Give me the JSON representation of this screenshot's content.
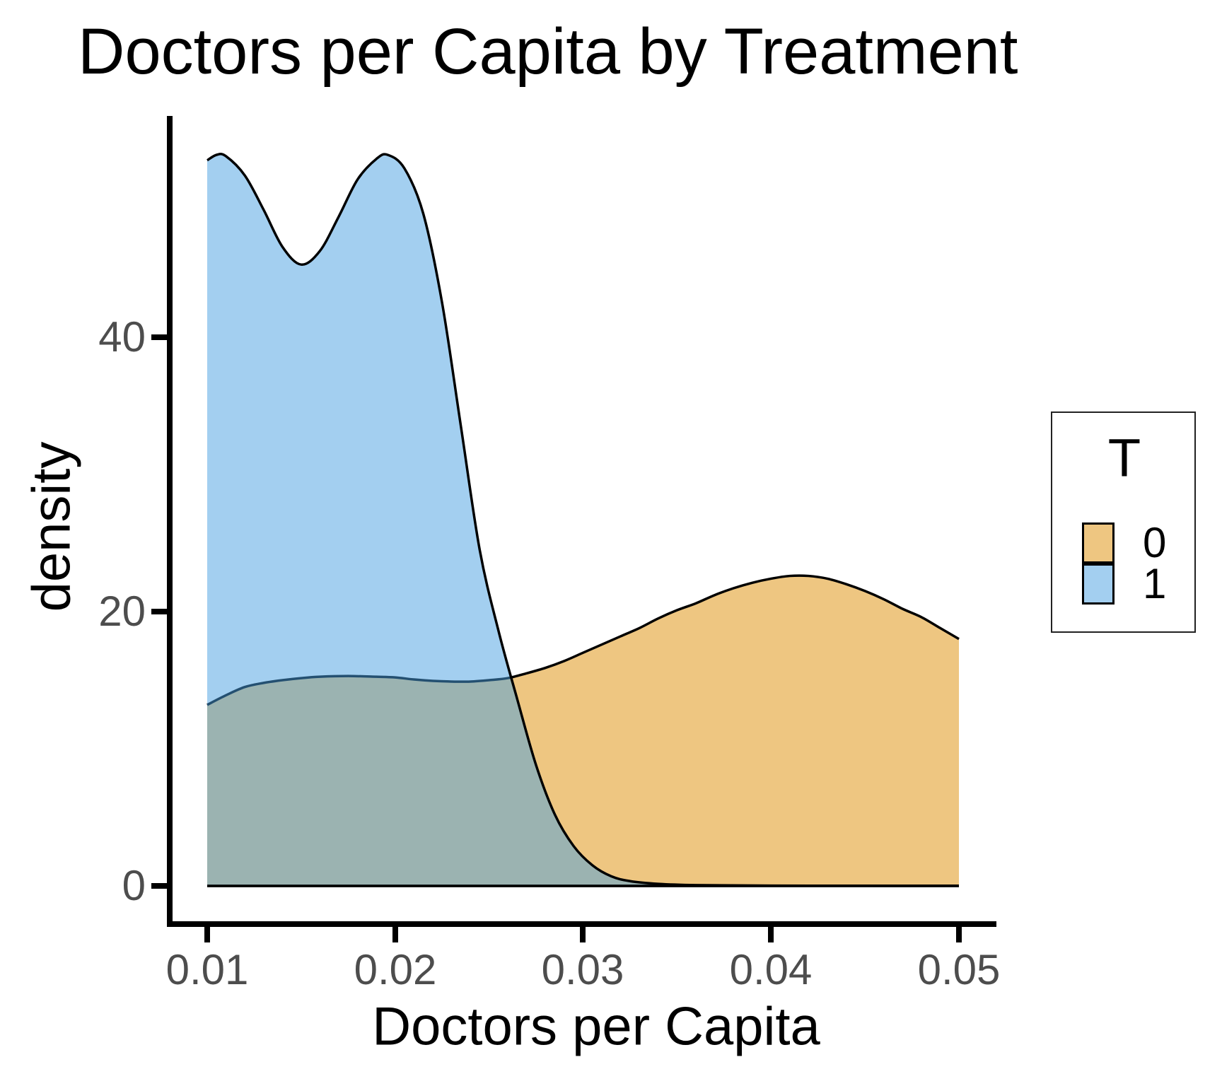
{
  "chart_data": {
    "type": "area",
    "variant": "overlapping-density",
    "title": "Doctors per Capita by Treatment",
    "xlabel": "Doctors per Capita",
    "ylabel": "density",
    "xlim": [
      0.01,
      0.05
    ],
    "ylim": [
      0,
      56
    ],
    "grid": false,
    "x_ticks": [
      "0.01",
      "0.02",
      "0.03",
      "0.04",
      "0.05"
    ],
    "y_ticks": [
      "0",
      "20",
      "40"
    ],
    "legend": {
      "title": "T",
      "position": "right",
      "entries": [
        {
          "label": "0",
          "swatch_color": "#EEC681"
        },
        {
          "label": "1",
          "swatch_color": "#A3CFF0"
        }
      ]
    },
    "series": [
      {
        "name": "0",
        "x": [
          0.01,
          0.011,
          0.012,
          0.013,
          0.014,
          0.015,
          0.016,
          0.0175,
          0.019,
          0.02,
          0.021,
          0.022,
          0.023,
          0.024,
          0.025,
          0.026,
          0.027,
          0.028,
          0.029,
          0.03,
          0.031,
          0.032,
          0.033,
          0.034,
          0.035,
          0.036,
          0.037,
          0.038,
          0.039,
          0.04,
          0.041,
          0.042,
          0.043,
          0.044,
          0.045,
          0.046,
          0.047,
          0.048,
          0.049,
          0.05
        ],
        "density": [
          13.2,
          13.9,
          14.5,
          14.8,
          15.0,
          15.15,
          15.25,
          15.3,
          15.25,
          15.2,
          15.05,
          14.95,
          14.9,
          14.9,
          15.0,
          15.15,
          15.5,
          15.9,
          16.4,
          17.0,
          17.6,
          18.2,
          18.8,
          19.5,
          20.1,
          20.6,
          21.2,
          21.7,
          22.1,
          22.4,
          22.6,
          22.6,
          22.4,
          22.0,
          21.5,
          20.9,
          20.2,
          19.6,
          18.8,
          18.0
        ]
      },
      {
        "name": "1",
        "x": [
          0.01,
          0.0105,
          0.011,
          0.012,
          0.013,
          0.014,
          0.015,
          0.016,
          0.017,
          0.018,
          0.019,
          0.0196,
          0.0205,
          0.0215,
          0.0225,
          0.0235,
          0.0245,
          0.0255,
          0.0265,
          0.0275,
          0.0285,
          0.0295,
          0.0305,
          0.0315,
          0.0325,
          0.034,
          0.036,
          0.04,
          0.045,
          0.05
        ],
        "density": [
          52.9,
          53.3,
          53.2,
          51.8,
          49.3,
          46.6,
          45.3,
          46.3,
          48.8,
          51.5,
          53.0,
          53.3,
          52.3,
          49.0,
          42.5,
          33.5,
          24.5,
          18.6,
          13.6,
          8.8,
          5.2,
          2.9,
          1.5,
          0.7,
          0.35,
          0.15,
          0.06,
          0.02,
          0.01,
          0.01
        ]
      }
    ]
  },
  "colors": {
    "series_0_fill": "#EEC681",
    "series_1_fill": "rgba(71,159,225,0.5)",
    "overlap_observed": "#98B2B2",
    "curve_stroke": "#000000",
    "axis": "#000000",
    "tick_label": "#4D4D4D",
    "legend_border": "#222222",
    "background": "#FFFFFF"
  }
}
